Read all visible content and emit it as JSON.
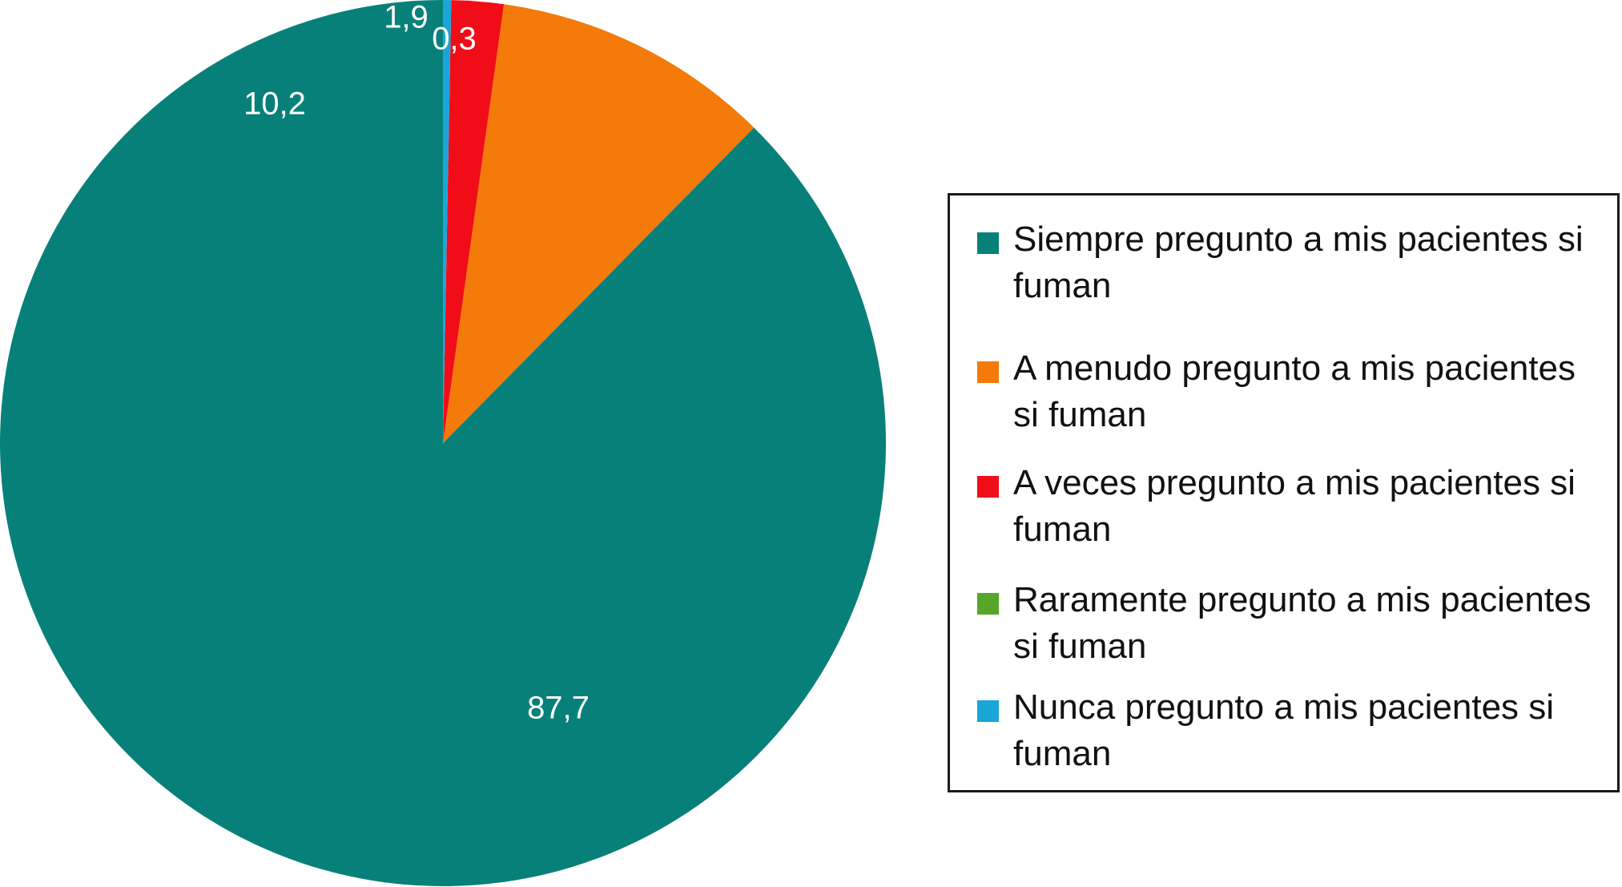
{
  "chart_data": {
    "type": "pie",
    "title": "",
    "slices": [
      {
        "label": "Siempre pregunto a mis pacientes si fuman",
        "value": 87.7,
        "value_label": "87,7",
        "color": "#08807a"
      },
      {
        "label": "A menudo pregunto a mis pacientes si fuman",
        "value": 10.2,
        "value_label": "10,2",
        "color": "#f47a0a"
      },
      {
        "label": "A veces pregunto a mis pacientes si fuman",
        "value": 1.9,
        "value_label": "1,9",
        "color": "#f10d18"
      },
      {
        "label": "Raramente pregunto a mis pacientes si fuman",
        "value": 0,
        "value_label": "",
        "color": "#57a62a"
      },
      {
        "label": "Nunca pregunto a mis pacientes si fuman",
        "value": 0.3,
        "value_label": "0,3",
        "color": "#1aa6d8"
      }
    ],
    "start_angle": "12 o'clock",
    "direction": "counterclockwise",
    "legend_position": "right"
  }
}
